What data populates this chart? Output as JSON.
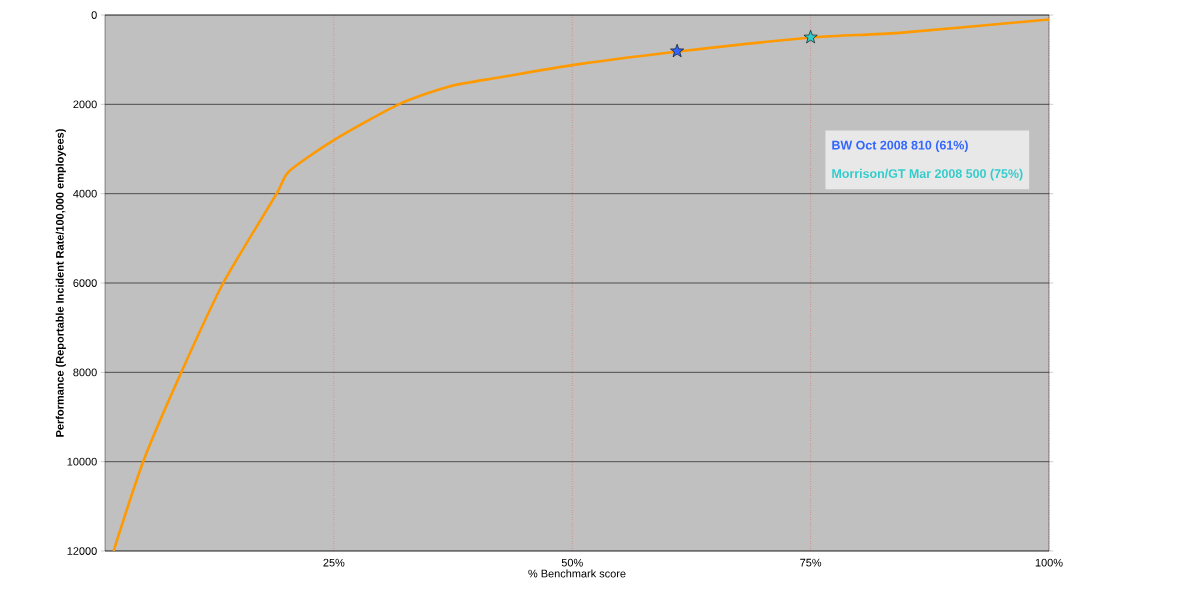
{
  "chart_data": {
    "type": "line",
    "xlabel": "% Benchmark score",
    "ylabel": "Performance (Reportable Incident Rate/100,000 employees)",
    "xlim": [
      1,
      100
    ],
    "ylim": [
      12000,
      0
    ],
    "xticks": [
      {
        "value": 25,
        "label": "25%"
      },
      {
        "value": 50,
        "label": "50%"
      },
      {
        "value": 75,
        "label": "75%"
      },
      {
        "value": 100,
        "label": "100%"
      }
    ],
    "yticks": [
      0,
      2000,
      4000,
      6000,
      8000,
      10000,
      12000
    ],
    "grid": true,
    "legend": "right",
    "marker": "none",
    "series": [
      {
        "color": "#ff9900",
        "x": [
          1.9,
          5,
          9,
          13.4,
          19,
          20.3,
          25,
          31.8,
          37.1,
          42.3,
          50.7,
          61.8,
          75.4,
          84.3,
          100
        ],
        "values": [
          12000,
          10000,
          8000,
          6000,
          4000,
          3500,
          2800,
          2000,
          1600,
          1400,
          1100,
          800,
          500,
          400,
          100
        ]
      },
      {
        "type": "scatter",
        "marker": "star",
        "name": "BW  Oct 2008 810 (61%)",
        "color": "#3366ff",
        "x": [
          61
        ],
        "values": [
          810
        ]
      },
      {
        "type": "scatter",
        "marker": "star",
        "name": "Morrison/GT Mar 2008 500 (75%)",
        "color": "#33cccc",
        "x": [
          75
        ],
        "values": [
          500
        ]
      }
    ]
  }
}
